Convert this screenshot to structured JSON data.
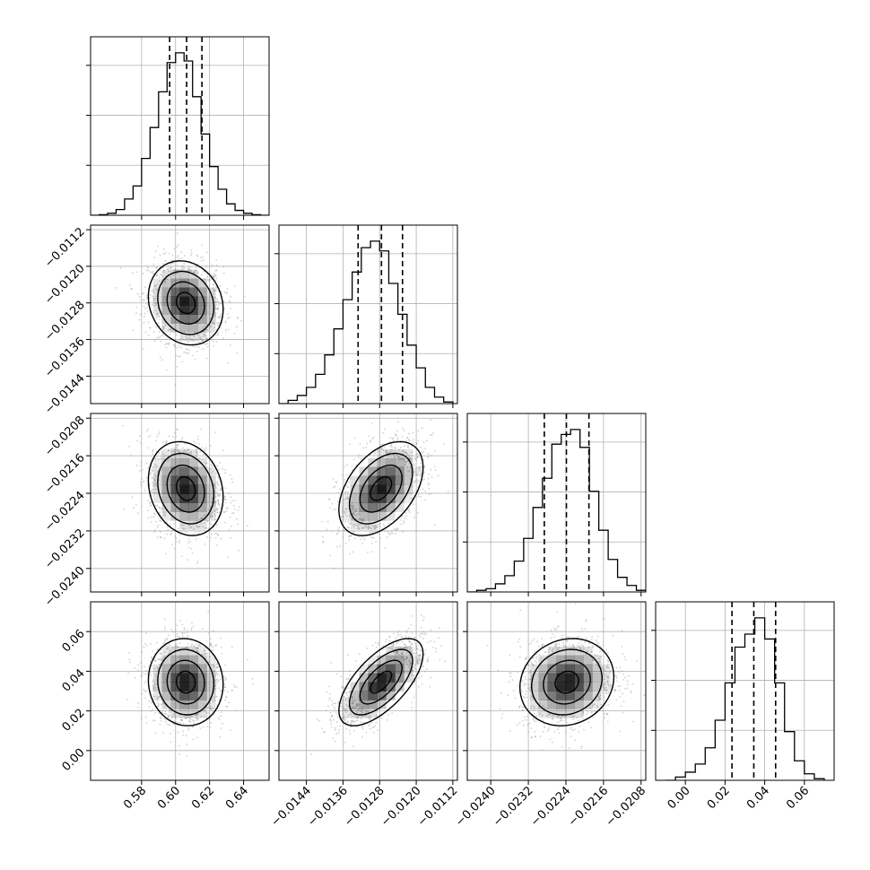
{
  "chart_data": {
    "type": "corner",
    "grid": true,
    "parameters": [
      {
        "range": [
          0.55,
          0.655
        ],
        "ticks": [
          0.58,
          0.6,
          0.62,
          0.64
        ],
        "tick_labels": [
          "0.58",
          "0.60",
          "0.62",
          "0.64"
        ],
        "quantiles": [
          0.5965,
          0.6065,
          0.6155
        ],
        "hist_max": 1.0,
        "hist_edges": [
          0.55,
          0.555,
          0.56,
          0.565,
          0.57,
          0.575,
          0.58,
          0.585,
          0.59,
          0.595,
          0.6,
          0.605,
          0.61,
          0.615,
          0.62,
          0.625,
          0.63,
          0.635,
          0.64,
          0.645,
          0.65,
          0.655
        ],
        "hist_counts": [
          0.0,
          0.003,
          0.012,
          0.035,
          0.1,
          0.18,
          0.35,
          0.54,
          0.76,
          0.94,
          1.0,
          0.95,
          0.73,
          0.5,
          0.3,
          0.16,
          0.07,
          0.03,
          0.012,
          0.003,
          0.0
        ]
      },
      {
        "range": [
          -0.015,
          -0.0111
        ],
        "ticks": [
          -0.0144,
          -0.0136,
          -0.0128,
          -0.012,
          -0.0112
        ],
        "tick_labels": [
          "−0.0144",
          "−0.0136",
          "−0.0128",
          "−0.0120",
          "−0.0112"
        ],
        "quantiles": [
          -0.01327,
          -0.01276,
          -0.0123
        ],
        "hist_max": 1.0,
        "hist_edges": [
          -0.015,
          -0.0148,
          -0.0146,
          -0.0144,
          -0.0142,
          -0.014,
          -0.0138,
          -0.0136,
          -0.0134,
          -0.0132,
          -0.013,
          -0.0128,
          -0.0126,
          -0.0124,
          -0.0122,
          -0.012,
          -0.0118,
          -0.0116,
          -0.0114,
          -0.0112
        ],
        "hist_counts": [
          0.0,
          0.02,
          0.05,
          0.1,
          0.18,
          0.3,
          0.46,
          0.64,
          0.81,
          0.96,
          1.0,
          0.94,
          0.74,
          0.55,
          0.36,
          0.22,
          0.1,
          0.04,
          0.01
        ]
      },
      {
        "range": [
          -0.0245,
          -0.0207
        ],
        "ticks": [
          -0.024,
          -0.0232,
          -0.0224,
          -0.0216,
          -0.0208
        ],
        "tick_labels": [
          "−0.0240",
          "−0.0232",
          "−0.0224",
          "−0.0216",
          "−0.0208"
        ],
        "quantiles": [
          -0.02286,
          -0.02239,
          -0.02191
        ],
        "hist_max": 1.0,
        "hist_edges": [
          -0.0245,
          -0.0243,
          -0.0241,
          -0.0239,
          -0.0237,
          -0.0235,
          -0.0233,
          -0.0231,
          -0.0229,
          -0.0227,
          -0.0225,
          -0.0223,
          -0.0221,
          -0.0219,
          -0.0217,
          -0.0215,
          -0.0213,
          -0.0211,
          -0.0209,
          -0.0207
        ],
        "hist_counts": [
          0.0,
          0.01,
          0.02,
          0.05,
          0.1,
          0.19,
          0.33,
          0.52,
          0.7,
          0.91,
          0.97,
          1.0,
          0.89,
          0.62,
          0.38,
          0.2,
          0.09,
          0.04,
          0.01
        ]
      },
      {
        "range": [
          -0.015,
          0.075
        ],
        "ticks": [
          0.0,
          0.02,
          0.04,
          0.06
        ],
        "tick_labels": [
          "0.00",
          "0.02",
          "0.04",
          "0.06"
        ],
        "quantiles": [
          0.0235,
          0.0345,
          0.0455
        ],
        "hist_max": 1.0,
        "hist_edges": [
          -0.01,
          -0.005,
          0.0,
          0.005,
          0.01,
          0.015,
          0.02,
          0.025,
          0.03,
          0.035,
          0.04,
          0.045,
          0.05,
          0.055,
          0.06,
          0.065,
          0.07
        ],
        "hist_counts": [
          0.0,
          0.02,
          0.05,
          0.1,
          0.2,
          0.37,
          0.6,
          0.82,
          0.9,
          1.0,
          0.87,
          0.6,
          0.3,
          0.12,
          0.04,
          0.01
        ]
      }
    ],
    "pairs": [
      {
        "x": 0,
        "y": 1,
        "center": [
          0.606,
          -0.0128
        ],
        "spread": [
          0.011,
          0.00046
        ],
        "rho": -0.15
      },
      {
        "x": 0,
        "y": 2,
        "center": [
          0.606,
          -0.0223
        ],
        "spread": [
          0.011,
          0.0005
        ],
        "rho": -0.18
      },
      {
        "x": 1,
        "y": 2,
        "center": [
          -0.01277,
          -0.0223
        ],
        "spread": [
          0.00046,
          0.0005
        ],
        "rho": 0.45
      },
      {
        "x": 0,
        "y": 3,
        "center": [
          0.606,
          0.0345
        ],
        "spread": [
          0.011,
          0.011
        ],
        "rho": -0.05
      },
      {
        "x": 1,
        "y": 3,
        "center": [
          -0.01277,
          0.0345
        ],
        "spread": [
          0.00046,
          0.011
        ],
        "rho": 0.65
      },
      {
        "x": 2,
        "y": 3,
        "center": [
          -0.02238,
          0.0345
        ],
        "spread": [
          0.0005,
          0.011
        ],
        "rho": 0.12
      }
    ],
    "contour_sigmas": [
      0.5,
      1.0,
      1.5,
      2.0
    ],
    "colors": {
      "line": "#000000",
      "grid": "#b0b0b0",
      "points": "#9a9a9a",
      "density": "#000000"
    }
  }
}
